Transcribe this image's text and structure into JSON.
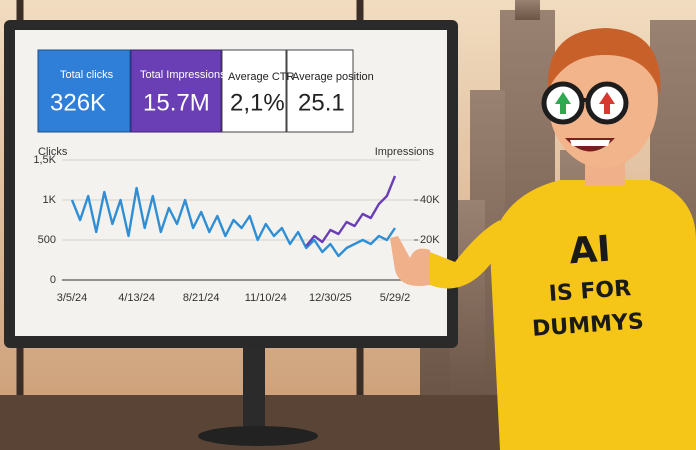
{
  "cards": [
    {
      "label": "Total clicks",
      "value": "326K"
    },
    {
      "label": "Total Impressions",
      "value": "15.7M"
    },
    {
      "label": "Average CTR",
      "value": "2,1%"
    },
    {
      "label": "Average position",
      "value": "25.1"
    }
  ],
  "chart_data": {
    "type": "line",
    "ylabel": "Clicks",
    "y2label": "Impressions",
    "categories": [
      "3/5/24",
      null,
      null,
      null,
      null,
      null,
      null,
      null,
      "4/13/24",
      null,
      null,
      null,
      null,
      null,
      null,
      null,
      "8/21/24",
      null,
      null,
      null,
      null,
      null,
      null,
      null,
      "11/10/24",
      null,
      null,
      null,
      null,
      null,
      null,
      null,
      "12/30/25",
      null,
      null,
      null,
      null,
      null,
      null,
      null,
      "5/29/2"
    ],
    "series": [
      {
        "name": "Clicks",
        "color": "#2e8fd6",
        "values": [
          1000,
          750,
          1050,
          600,
          1100,
          700,
          1000,
          550,
          1150,
          650,
          1050,
          600,
          900,
          700,
          1000,
          650,
          850,
          600,
          800,
          550,
          750,
          650,
          800,
          500,
          700,
          550,
          650,
          450,
          600,
          400,
          500,
          350,
          450,
          300,
          400,
          450,
          500,
          450,
          550,
          500,
          650
        ]
      },
      {
        "name": "Impressions",
        "color": "#6a3fb5",
        "axis": "y2",
        "values": [
          null,
          null,
          null,
          null,
          null,
          null,
          null,
          null,
          null,
          null,
          null,
          null,
          null,
          null,
          null,
          null,
          null,
          null,
          null,
          null,
          null,
          null,
          null,
          null,
          null,
          null,
          null,
          null,
          null,
          17000,
          22000,
          19000,
          25000,
          23000,
          29000,
          27000,
          33000,
          31000,
          38000,
          42000,
          52000
        ]
      }
    ],
    "ylim": [
      0,
      1500
    ],
    "yticks": [
      0,
      500,
      {
        "value": 1000,
        "label": "1K"
      },
      {
        "value": 1500,
        "label": "1,5K"
      }
    ],
    "y2lim": [
      0,
      60000
    ],
    "y2ticks": [
      {
        "value": 20000,
        "label": "20K"
      },
      {
        "value": 40000,
        "label": "40K"
      }
    ],
    "grid": true
  },
  "shirt": [
    "AI",
    "IS FOR",
    "DUMMYS"
  ]
}
